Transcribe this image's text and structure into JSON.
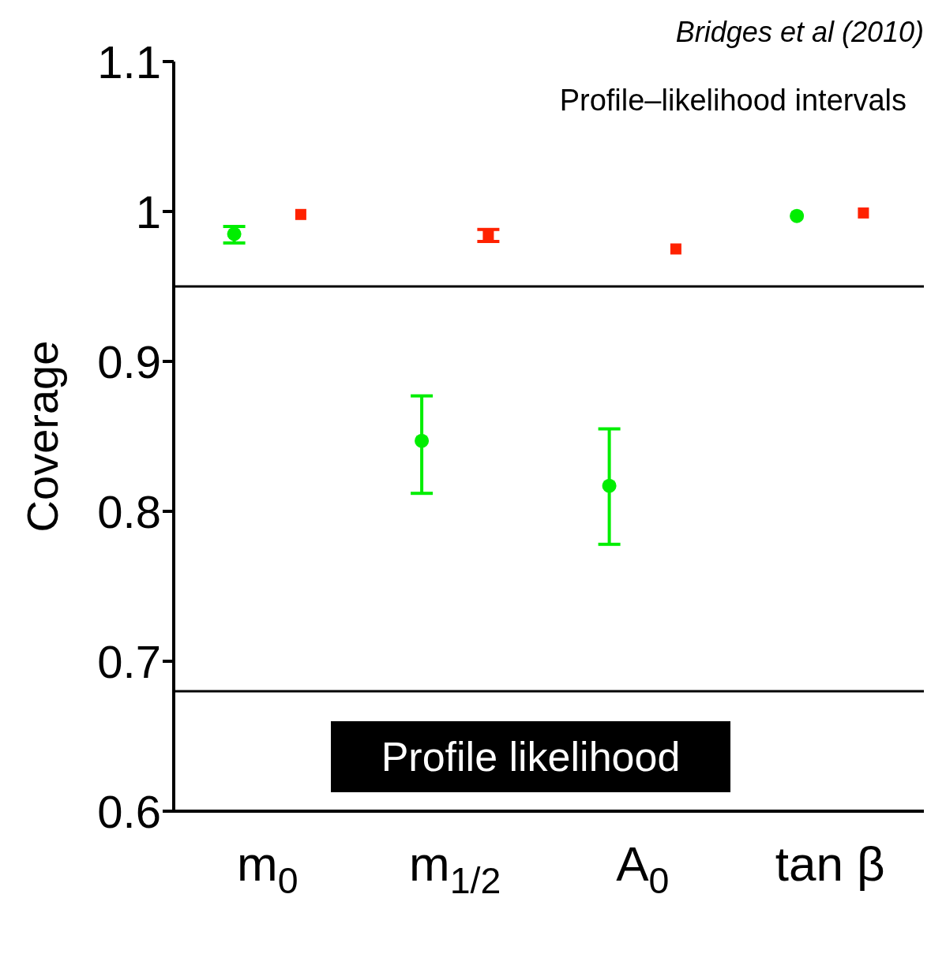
{
  "chart_data": {
    "type": "scatter",
    "ylabel": "Coverage",
    "categories": [
      "m$_{0}$",
      "m$_{1/2}$",
      "A$_{0}$",
      "tan β"
    ],
    "series": [
      {
        "color": "#00ee00",
        "marker": "circle",
        "values": [
          0.985,
          0.847,
          0.817,
          0.997
        ],
        "errors": [
          [
            0.979,
            0.99
          ],
          [
            0.812,
            0.877
          ],
          [
            0.778,
            0.855
          ],
          null
        ]
      },
      {
        "color": "#ff2200",
        "marker": "square",
        "values": [
          0.998,
          0.984,
          0.975,
          0.999
        ],
        "errors": [
          null,
          [
            0.98,
            0.988
          ],
          null,
          null
        ]
      }
    ],
    "ylim": [
      0.6,
      1.1
    ],
    "yticks": [
      0.6,
      {
        "value": 0.7,
        "label": "0.7"
      },
      {
        "value": 0.8,
        "label": "0.8"
      },
      {
        "value": 0.9,
        "label": "0.9"
      },
      1,
      1.1
    ],
    "ref_lines": [
      {
        "axis": "y",
        "value": 0.95,
        "color": "#000000"
      },
      {
        "axis": "y",
        "value": 0.68,
        "color": "#000000"
      }
    ],
    "annotations": [
      "Bridges et al (2010)",
      "Profile–likelihood intervals",
      "Profile likelihood"
    ],
    "grid": false
  }
}
